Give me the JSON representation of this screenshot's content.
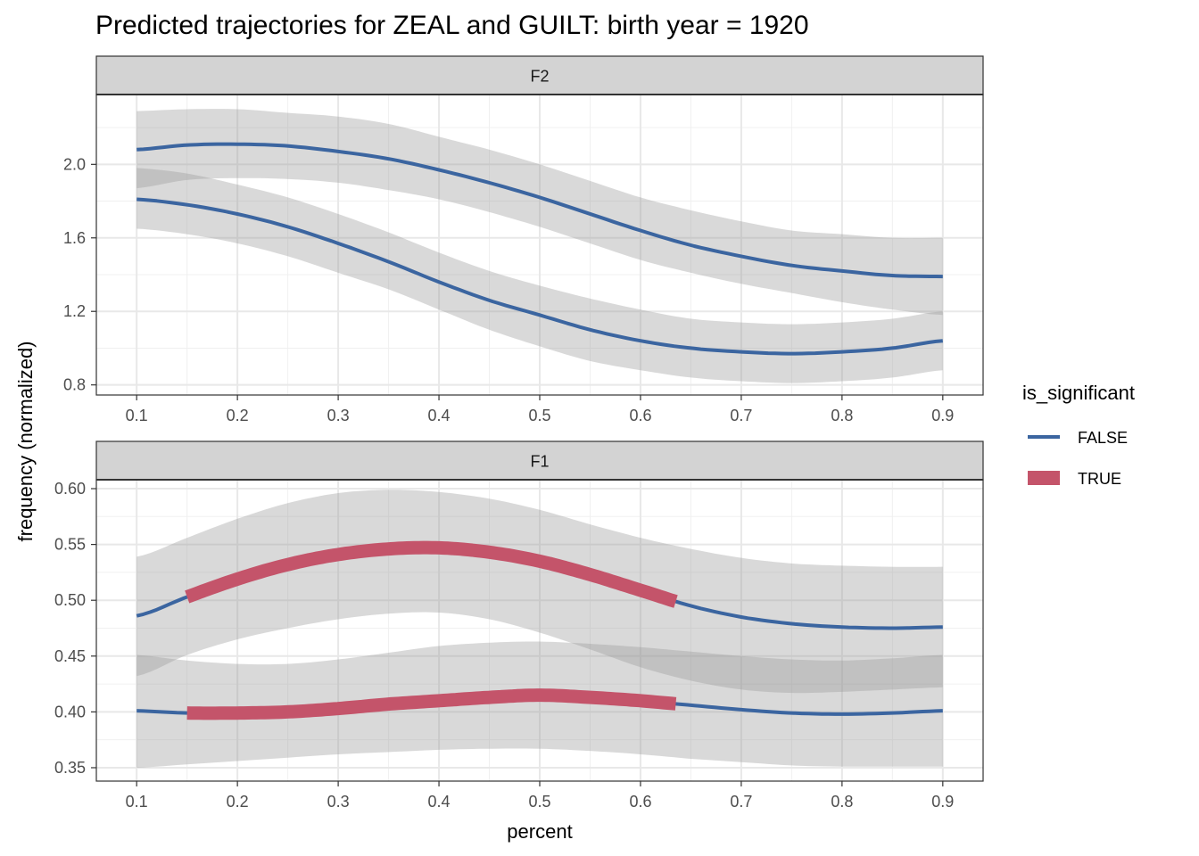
{
  "title": "Predicted trajectories for ZEAL and GUILT: birth year = 1920",
  "ylabel": "frequency (normalized)",
  "legend": {
    "title": "is_significant",
    "items": [
      {
        "label": "FALSE",
        "color": "#3B65A0"
      },
      {
        "label": "TRUE",
        "color": "#C4546A"
      }
    ]
  },
  "chart_data": [
    {
      "type": "line",
      "panel": "F2",
      "title": "F2",
      "xlabel": "",
      "xlim": [
        0.06,
        0.94
      ],
      "ylim": [
        0.745,
        2.38
      ],
      "x_ticks": [
        "0.1",
        "0.2",
        "0.3",
        "0.4",
        "0.5",
        "0.6",
        "0.7",
        "0.8",
        "0.9"
      ],
      "y_ticks": [
        "0.8",
        "1.2",
        "1.6",
        "2.0"
      ],
      "grid": true,
      "series": [
        {
          "x": [
            0.1,
            0.15,
            0.2,
            0.25,
            0.3,
            0.35,
            0.4,
            0.45,
            0.5,
            0.55,
            0.6,
            0.65,
            0.7,
            0.75,
            0.8,
            0.85,
            0.9
          ],
          "y": [
            2.08,
            2.105,
            2.11,
            2.1,
            2.07,
            2.03,
            1.97,
            1.9,
            1.82,
            1.73,
            1.64,
            1.56,
            1.5,
            1.45,
            1.42,
            1.395,
            1.39
          ],
          "lower": [
            1.87,
            1.915,
            1.925,
            1.92,
            1.9,
            1.86,
            1.81,
            1.74,
            1.66,
            1.57,
            1.48,
            1.41,
            1.35,
            1.3,
            1.25,
            1.21,
            1.18
          ],
          "upper": [
            2.29,
            2.3,
            2.3,
            2.28,
            2.26,
            2.22,
            2.15,
            2.08,
            2.0,
            1.91,
            1.82,
            1.75,
            1.69,
            1.64,
            1.62,
            1.6,
            1.6
          ],
          "significant": []
        },
        {
          "x": [
            0.1,
            0.15,
            0.2,
            0.25,
            0.3,
            0.35,
            0.4,
            0.45,
            0.5,
            0.55,
            0.6,
            0.65,
            0.7,
            0.75,
            0.8,
            0.85,
            0.9
          ],
          "y": [
            1.81,
            1.78,
            1.73,
            1.66,
            1.57,
            1.47,
            1.36,
            1.26,
            1.18,
            1.1,
            1.04,
            1.0,
            0.98,
            0.97,
            0.98,
            1.0,
            1.04
          ],
          "lower": [
            1.65,
            1.62,
            1.57,
            1.5,
            1.41,
            1.32,
            1.21,
            1.1,
            1.01,
            0.93,
            0.88,
            0.84,
            0.82,
            0.81,
            0.82,
            0.84,
            0.88
          ],
          "upper": [
            1.98,
            1.95,
            1.89,
            1.82,
            1.73,
            1.63,
            1.52,
            1.42,
            1.34,
            1.27,
            1.21,
            1.16,
            1.14,
            1.13,
            1.14,
            1.16,
            1.2
          ],
          "significant": []
        }
      ]
    },
    {
      "type": "line",
      "panel": "F1",
      "title": "F1",
      "xlabel": "percent",
      "xlim": [
        0.06,
        0.94
      ],
      "ylim": [
        0.338,
        0.608
      ],
      "x_ticks": [
        "0.1",
        "0.2",
        "0.3",
        "0.4",
        "0.5",
        "0.6",
        "0.7",
        "0.8",
        "0.9"
      ],
      "y_ticks": [
        "0.35",
        "0.40",
        "0.45",
        "0.50",
        "0.55",
        "0.60"
      ],
      "grid": true,
      "series": [
        {
          "x": [
            0.1,
            0.15,
            0.2,
            0.25,
            0.3,
            0.35,
            0.4,
            0.45,
            0.5,
            0.55,
            0.6,
            0.65,
            0.7,
            0.75,
            0.8,
            0.85,
            0.9
          ],
          "y": [
            0.486,
            0.503,
            0.519,
            0.532,
            0.541,
            0.546,
            0.547,
            0.543,
            0.535,
            0.523,
            0.509,
            0.495,
            0.485,
            0.479,
            0.476,
            0.475,
            0.476
          ],
          "lower": [
            0.432,
            0.451,
            0.465,
            0.475,
            0.483,
            0.488,
            0.489,
            0.483,
            0.471,
            0.456,
            0.44,
            0.428,
            0.42,
            0.417,
            0.418,
            0.42,
            0.422
          ],
          "upper": [
            0.539,
            0.556,
            0.573,
            0.587,
            0.596,
            0.599,
            0.597,
            0.591,
            0.581,
            0.568,
            0.556,
            0.546,
            0.538,
            0.533,
            0.531,
            0.53,
            0.53
          ],
          "significant": [
            [
              0.15,
              0.635
            ]
          ]
        },
        {
          "x": [
            0.1,
            0.15,
            0.2,
            0.25,
            0.3,
            0.35,
            0.4,
            0.45,
            0.5,
            0.55,
            0.6,
            0.65,
            0.7,
            0.75,
            0.8,
            0.85,
            0.9
          ],
          "y": [
            0.401,
            0.399,
            0.399,
            0.4,
            0.403,
            0.407,
            0.41,
            0.413,
            0.415,
            0.413,
            0.41,
            0.406,
            0.402,
            0.399,
            0.398,
            0.399,
            0.401
          ],
          "lower": [
            0.35,
            0.353,
            0.356,
            0.359,
            0.362,
            0.364,
            0.366,
            0.367,
            0.367,
            0.365,
            0.362,
            0.358,
            0.355,
            0.352,
            0.351,
            0.351,
            0.351
          ],
          "upper": [
            0.451,
            0.446,
            0.443,
            0.443,
            0.447,
            0.453,
            0.459,
            0.462,
            0.463,
            0.461,
            0.458,
            0.454,
            0.45,
            0.447,
            0.446,
            0.448,
            0.451
          ],
          "significant": [
            [
              0.15,
              0.635
            ]
          ]
        }
      ]
    }
  ]
}
